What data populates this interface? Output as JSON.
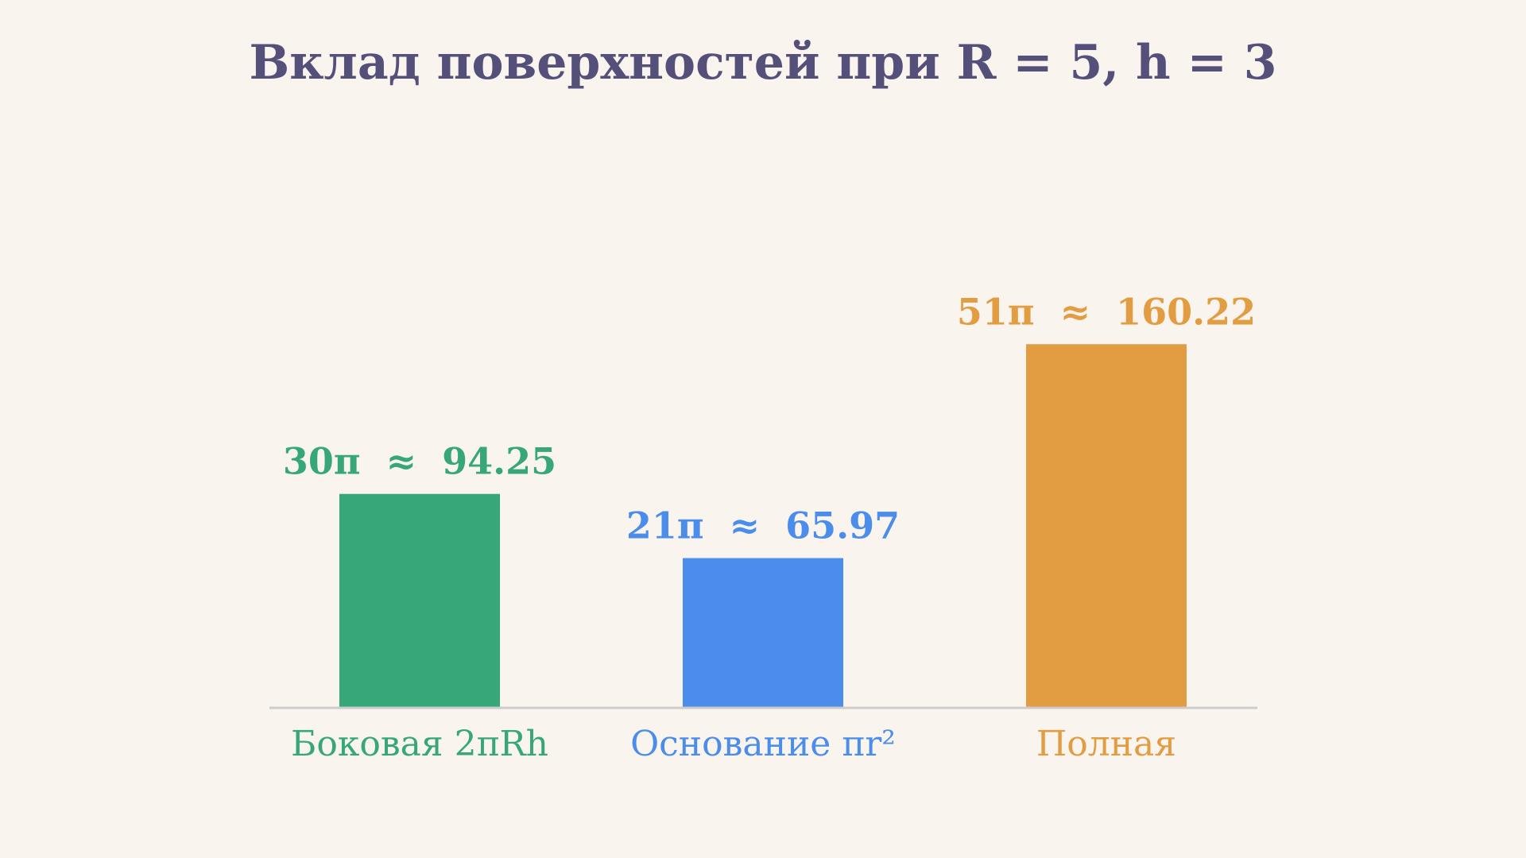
{
  "chart_data": {
    "type": "bar",
    "title": "Вклад поверхностей при R = 5, h = 3",
    "xlabel": "",
    "ylabel": "",
    "ylim": [
      0,
      200
    ],
    "grid": false,
    "categories": [
      "Боковая 2πRh",
      "Основание πr²",
      "Полная"
    ],
    "values": [
      94.25,
      65.97,
      160.22
    ],
    "value_labels": [
      "30π  ≈  94.25",
      "21π  ≈  65.97",
      "51π  ≈  160.22"
    ],
    "colors": [
      "#37a77a",
      "#4a8deb",
      "#e29c41"
    ],
    "axis_color": "#cccccc"
  }
}
